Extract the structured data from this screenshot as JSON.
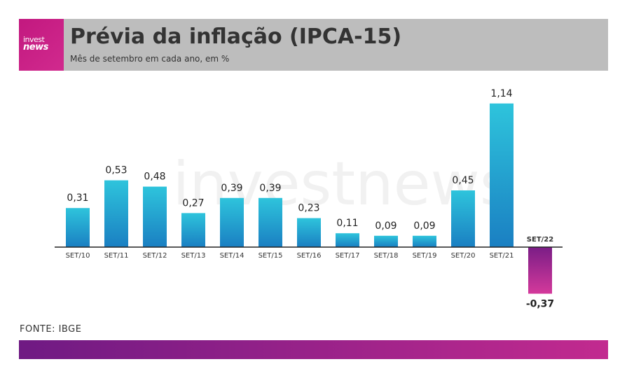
{
  "header": {
    "logo_line1": "invest",
    "logo_line2": "news",
    "title": "Prévia da inflação (IPCA-15)",
    "subtitle": "Mês de setembro em cada ano, em %"
  },
  "watermark": "investnews",
  "source": "FONTE: IBGE",
  "colors": {
    "positive_top": "#2ec4dc",
    "positive_bottom": "#1a7fc2",
    "negative_top": "#7a1d86",
    "negative_bottom": "#d4399b",
    "header_bg": "#bdbdbd",
    "logo_bg": "#c2187f"
  },
  "chart_data": {
    "type": "bar",
    "categories": [
      "SET/10",
      "SET/11",
      "SET/12",
      "SET/13",
      "SET/14",
      "SET/15",
      "SET/16",
      "SET/17",
      "SET/18",
      "SET/19",
      "SET/20",
      "SET/21",
      "SET/22"
    ],
    "values": [
      0.31,
      0.53,
      0.48,
      0.27,
      0.39,
      0.39,
      0.23,
      0.11,
      0.09,
      0.09,
      0.45,
      1.14,
      -0.37
    ],
    "value_labels": [
      "0,31",
      "0,53",
      "0,48",
      "0,27",
      "0,39",
      "0,39",
      "0,23",
      "0,11",
      "0,09",
      "0,09",
      "0,45",
      "1,14",
      "-0,37"
    ],
    "highlight_category": "SET/22",
    "title": "Prévia da inflação (IPCA-15)",
    "xlabel": "",
    "ylabel": "",
    "grid": false,
    "legend": "none"
  }
}
